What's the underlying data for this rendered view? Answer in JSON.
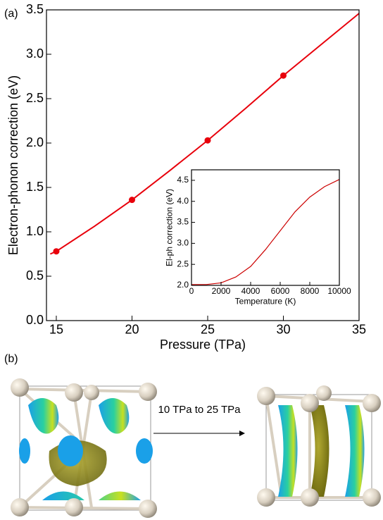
{
  "panel_labels": [
    "(a)",
    "(b)"
  ],
  "structure_transition": "10 TPa to 25 TPa",
  "chart_data": [
    {
      "type": "line",
      "x_label": "Pressure (TPa)",
      "y_label": "Electron-phonon correction (eV)",
      "xlim": [
        14.35,
        35
      ],
      "xticks": [
        15,
        20,
        25,
        30,
        35
      ],
      "ylim": [
        0,
        3.5
      ],
      "yticks": [
        {
          "value": 0,
          "label": "0.0"
        },
        0.5,
        {
          "value": 1,
          "label": "1.0"
        },
        1.5,
        {
          "value": 2,
          "label": "2.0"
        },
        2.5,
        {
          "value": 3,
          "label": "3.0"
        },
        3.5
      ],
      "series": [
        {
          "style": "line",
          "color": "#e8000b",
          "x": [
            14.6,
            15,
            17.5,
            20,
            22.5,
            25,
            27.5,
            30,
            32.5,
            35
          ],
          "values": [
            0.75,
            0.78,
            1.06,
            1.36,
            1.69,
            2.03,
            2.39,
            2.76,
            3.11,
            3.46
          ]
        },
        {
          "style": "markers",
          "color": "#e8000b",
          "x": [
            15,
            20,
            25,
            30
          ],
          "values": [
            0.78,
            1.36,
            2.03,
            2.76
          ]
        }
      ]
    },
    {
      "type": "line",
      "x_label": "Temperature (K)",
      "y_label": "El-ph correction (eV)",
      "xlim": [
        0,
        10000
      ],
      "xticks": [
        0,
        2000,
        4000,
        6000,
        8000,
        10000
      ],
      "ylim": [
        2,
        4.75
      ],
      "yticks": [
        {
          "value": 2,
          "label": "2.0"
        },
        2.5,
        {
          "value": 3,
          "label": "3.0"
        },
        3.5,
        {
          "value": 4,
          "label": "4.0"
        },
        4.5
      ],
      "series": [
        {
          "style": "line",
          "color": "#cc0000",
          "x": [
            0,
            1000,
            2000,
            3000,
            4000,
            5000,
            6000,
            7000,
            8000,
            9000,
            10000
          ],
          "values": [
            2.02,
            2.02,
            2.06,
            2.2,
            2.45,
            2.85,
            3.3,
            3.75,
            4.1,
            4.35,
            4.52
          ]
        }
      ]
    }
  ]
}
